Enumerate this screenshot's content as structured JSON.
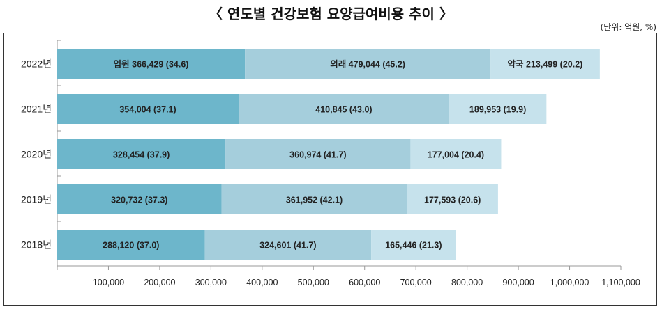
{
  "chart_data": {
    "type": "bar",
    "orientation": "horizontal",
    "stacked": true,
    "title": "〈 연도별 건강보험 요양급여비용 추이 〉",
    "unit_note": "(단위: 억원, %)",
    "categories": [
      "2022년",
      "2021년",
      "2020년",
      "2019년",
      "2018년"
    ],
    "series": [
      {
        "name": "입원",
        "color": "#6DB6CB",
        "values": [
          366429,
          354004,
          328454,
          320732,
          288120
        ],
        "shares": [
          34.6,
          37.1,
          37.9,
          37.3,
          37.0
        ]
      },
      {
        "name": "외래",
        "color": "#A5CEDC",
        "values": [
          479044,
          410845,
          360974,
          361952,
          324601
        ],
        "shares": [
          45.2,
          43.0,
          41.7,
          42.1,
          41.7
        ]
      },
      {
        "name": "약국",
        "color": "#C6E2EC",
        "values": [
          213499,
          189953,
          177004,
          177593,
          165446
        ],
        "shares": [
          20.2,
          19.9,
          20.4,
          20.6,
          21.3
        ]
      }
    ],
    "data_labels": [
      [
        "입원 366,429 (34.6)",
        "외래 479,044 (45.2)",
        "약국 213,499 (20.2)"
      ],
      [
        "354,004 (37.1)",
        "410,845 (43.0)",
        "189,953 (19.9)"
      ],
      [
        "328,454 (37.9)",
        "360,974 (41.7)",
        "177,004 (20.4)"
      ],
      [
        "320,732 (37.3)",
        "361,952 (42.1)",
        "177,593 (20.6)"
      ],
      [
        "288,120 (37.0)",
        "324,601 (41.7)",
        "165,446 (21.3)"
      ]
    ],
    "xlim": [
      0,
      1100000
    ],
    "xticks": [
      0,
      100000,
      200000,
      300000,
      400000,
      500000,
      600000,
      700000,
      800000,
      900000,
      1000000,
      1100000
    ],
    "xtick_labels": [
      "-",
      "100,000",
      "200,000",
      "300,000",
      "400,000",
      "500,000",
      "600,000",
      "700,000",
      "800,000",
      "900,000",
      "1,000,000",
      "1,100,000"
    ],
    "grid": false,
    "legend": "none"
  }
}
